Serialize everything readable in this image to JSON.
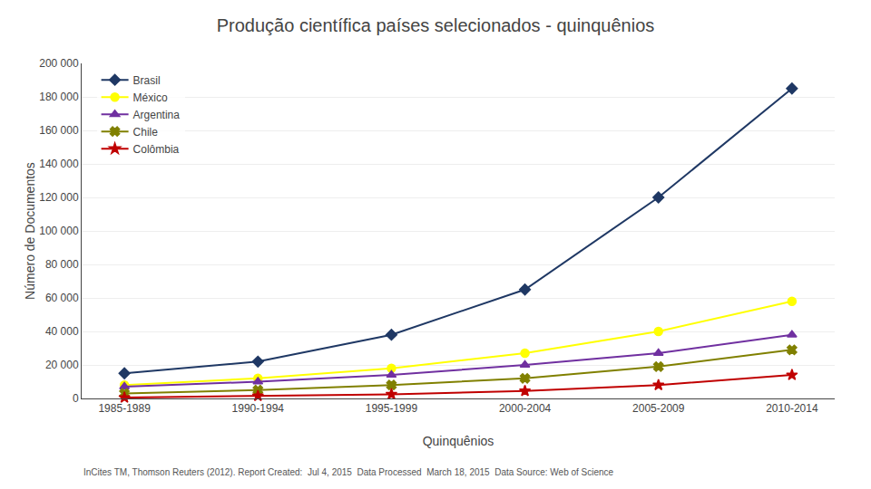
{
  "chart_data": {
    "type": "line",
    "title": "Produção científica países selecionados - quinquênios",
    "x_label": "Quinquênios",
    "y_label": "Número de Documentos",
    "categories": [
      "1985-1989",
      "1990-1994",
      "1995-1999",
      "2000-2004",
      "2005-2009",
      "2010-2014"
    ],
    "series": [
      {
        "name": "Brasil",
        "color": "#1F3864",
        "marker": "diamond",
        "values": [
          15000,
          22000,
          38000,
          65000,
          120000,
          185000
        ]
      },
      {
        "name": "México",
        "color": "#FFFF00",
        "marker": "circle",
        "values": [
          8000,
          12000,
          18000,
          27000,
          40000,
          58000
        ]
      },
      {
        "name": "Argentina",
        "color": "#7030A0",
        "marker": "triangle-up",
        "values": [
          7000,
          10000,
          14000,
          20000,
          27000,
          38000
        ]
      },
      {
        "name": "Chile",
        "color": "#808000",
        "marker": "x",
        "values": [
          3000,
          5000,
          8000,
          12000,
          19000,
          29000
        ]
      },
      {
        "name": "Colômbia",
        "color": "#C00000",
        "marker": "star",
        "values": [
          500,
          1500,
          2500,
          4500,
          8000,
          14000
        ]
      }
    ],
    "ylim": [
      0,
      200000
    ],
    "yticks": [
      0,
      {
        "value": 20000,
        "label": "20 000"
      },
      {
        "value": 40000,
        "label": "40 000"
      },
      {
        "value": 60000,
        "label": "60 000"
      },
      {
        "value": 80000,
        "label": "80 000"
      },
      {
        "value": 100000,
        "label": "100 000"
      },
      {
        "value": 120000,
        "label": "120 000"
      },
      {
        "value": 140000,
        "label": "140 000"
      },
      {
        "value": 160000,
        "label": "160 000"
      },
      {
        "value": 180000,
        "label": "180 000"
      },
      {
        "value": 200000,
        "label": "200 000"
      }
    ],
    "grid": true,
    "legend": "upper left",
    "annotations": [
      "InCites TM, Thomson Reuters (2012). Report Created:  Jul 4, 2015  Data Processed  March 18, 2015  Data Source: Web of Science"
    ]
  }
}
